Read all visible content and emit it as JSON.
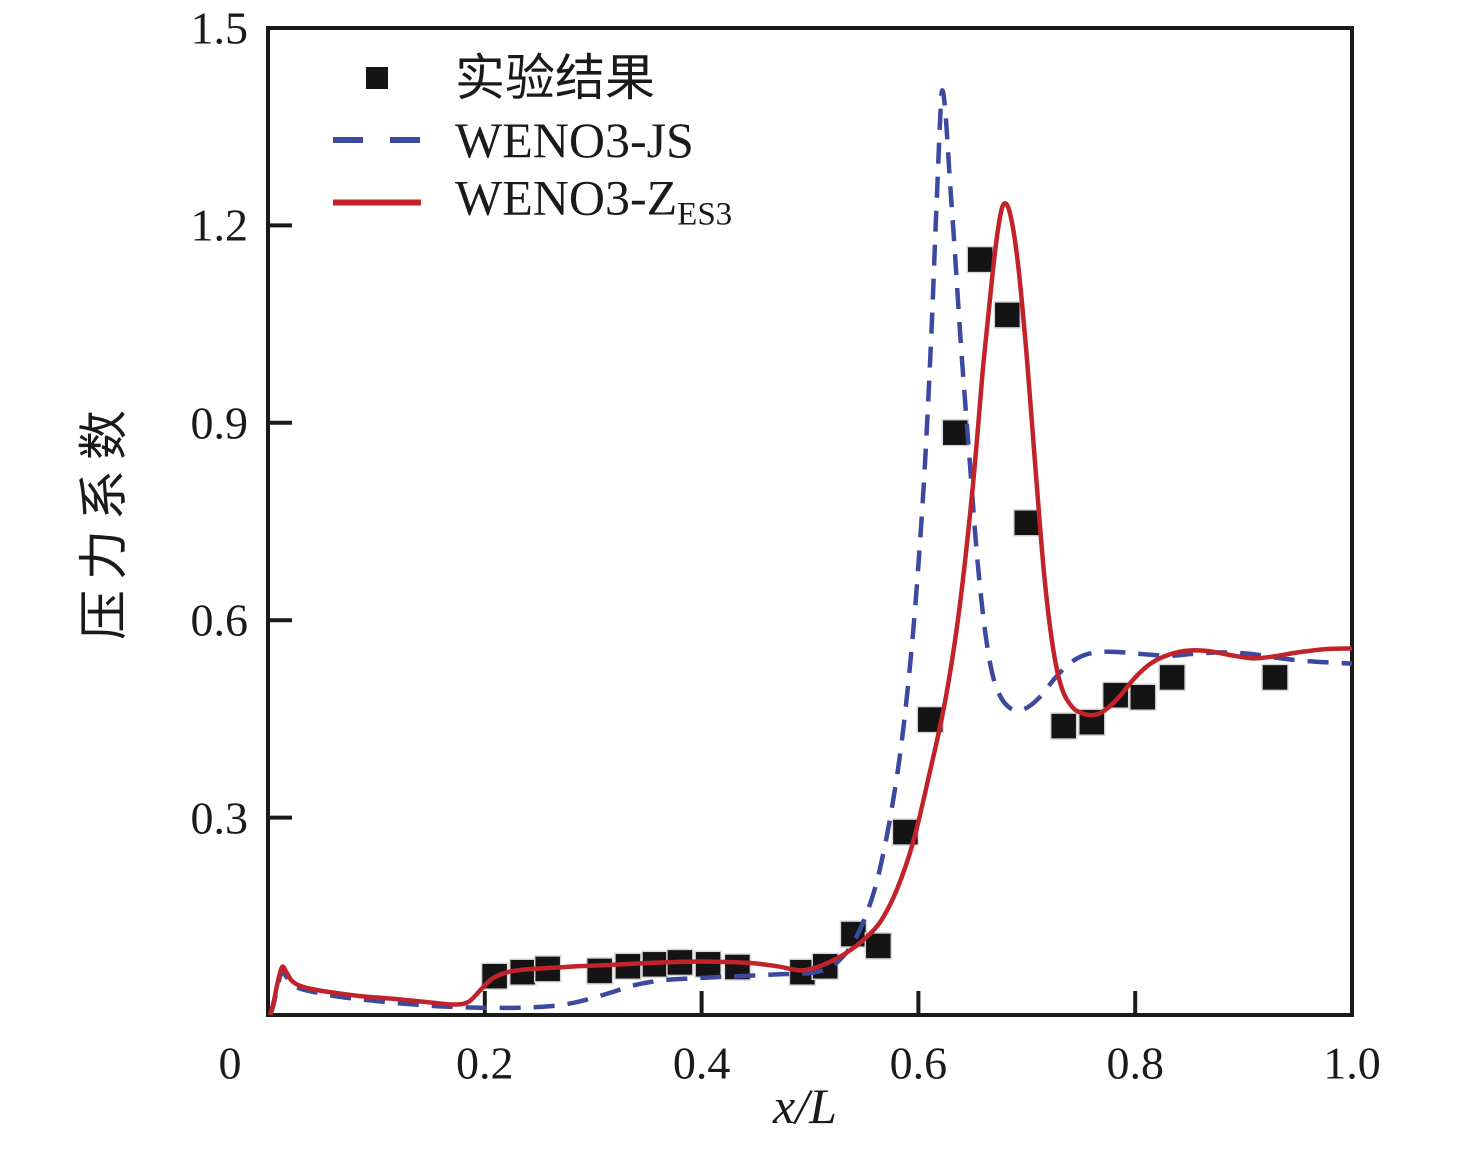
{
  "figure": {
    "background": "#ffffff",
    "axis_color": "#1a1a1a"
  },
  "legend": {
    "items": [
      {
        "label": "实验结果",
        "label_sub": "",
        "marker": "square",
        "color": "#141414"
      },
      {
        "label": "WENO3-JS",
        "label_sub": "",
        "marker": "dashed-line",
        "color": "#3b4a9f"
      },
      {
        "label": "WENO3-Z",
        "label_sub": "ES3",
        "marker": "solid-line",
        "color": "#c2232b"
      }
    ]
  },
  "chart_data": {
    "type": "line",
    "title": "",
    "xlabel": "x/L",
    "ylabel": "压力系数",
    "xlim": [
      0,
      1.0
    ],
    "ylim": [
      0,
      1.5
    ],
    "grid": false,
    "legend_position": "upper-left-inside",
    "x_ticks": [
      {
        "v": 0.0,
        "label": "0",
        "mark": false,
        "dx": -38
      },
      {
        "v": 0.2,
        "label": "0.2",
        "mark": true,
        "dx": 0
      },
      {
        "v": 0.4,
        "label": "0.4",
        "mark": true,
        "dx": 0
      },
      {
        "v": 0.6,
        "label": "0.6",
        "mark": true,
        "dx": 0
      },
      {
        "v": 0.8,
        "label": "0.8",
        "mark": true,
        "dx": 0
      },
      {
        "v": 1.0,
        "label": "1.0",
        "mark": false,
        "dx": 0
      }
    ],
    "y_ticks": [
      {
        "v": 0.3,
        "label": "0.3",
        "mark": true
      },
      {
        "v": 0.6,
        "label": "0.6",
        "mark": true
      },
      {
        "v": 0.9,
        "label": "0.9",
        "mark": true
      },
      {
        "v": 1.2,
        "label": "1.2",
        "mark": true
      },
      {
        "v": 1.5,
        "label": "1.5",
        "mark": false
      }
    ],
    "series": [
      {
        "name": "实验结果",
        "type": "scatter",
        "marker": "square",
        "marker_size": 26,
        "color": "#141414",
        "points": [
          [
            0.209,
            0.059
          ],
          [
            0.235,
            0.065
          ],
          [
            0.258,
            0.07
          ],
          [
            0.306,
            0.067
          ],
          [
            0.332,
            0.074
          ],
          [
            0.357,
            0.077
          ],
          [
            0.38,
            0.08
          ],
          [
            0.406,
            0.077
          ],
          [
            0.433,
            0.073
          ],
          [
            0.493,
            0.065
          ],
          [
            0.514,
            0.074
          ],
          [
            0.54,
            0.123
          ],
          [
            0.563,
            0.105
          ],
          [
            0.588,
            0.278
          ],
          [
            0.611,
            0.449
          ],
          [
            0.634,
            0.885
          ],
          [
            0.657,
            1.148
          ],
          [
            0.682,
            1.064
          ],
          [
            0.7,
            0.748
          ],
          [
            0.734,
            0.439
          ],
          [
            0.76,
            0.445
          ],
          [
            0.782,
            0.486
          ],
          [
            0.807,
            0.483
          ],
          [
            0.834,
            0.513
          ],
          [
            0.929,
            0.513
          ]
        ]
      },
      {
        "name": "WENO3-JS",
        "type": "line",
        "style": "dashed",
        "color": "#3b4a9f",
        "stroke_width": 4.5,
        "peak": {
          "x": 0.622,
          "y": 1.405
        },
        "points": [
          [
            0.002,
            0.0
          ],
          [
            0.005,
            0.015
          ],
          [
            0.009,
            0.045
          ],
          [
            0.013,
            0.066
          ],
          [
            0.017,
            0.058
          ],
          [
            0.022,
            0.047
          ],
          [
            0.03,
            0.04
          ],
          [
            0.045,
            0.034
          ],
          [
            0.065,
            0.028
          ],
          [
            0.09,
            0.023
          ],
          [
            0.12,
            0.018
          ],
          [
            0.15,
            0.014
          ],
          [
            0.175,
            0.012
          ],
          [
            0.2,
            0.011
          ],
          [
            0.23,
            0.011
          ],
          [
            0.258,
            0.013
          ],
          [
            0.28,
            0.018
          ],
          [
            0.3,
            0.026
          ],
          [
            0.318,
            0.035
          ],
          [
            0.335,
            0.044
          ],
          [
            0.352,
            0.05
          ],
          [
            0.372,
            0.054
          ],
          [
            0.395,
            0.056
          ],
          [
            0.42,
            0.058
          ],
          [
            0.448,
            0.06
          ],
          [
            0.472,
            0.062
          ],
          [
            0.495,
            0.063
          ],
          [
            0.512,
            0.068
          ],
          [
            0.525,
            0.08
          ],
          [
            0.538,
            0.105
          ],
          [
            0.55,
            0.145
          ],
          [
            0.562,
            0.205
          ],
          [
            0.574,
            0.3
          ],
          [
            0.585,
            0.42
          ],
          [
            0.595,
            0.58
          ],
          [
            0.604,
            0.78
          ],
          [
            0.611,
            1.0
          ],
          [
            0.616,
            1.2
          ],
          [
            0.62,
            1.36
          ],
          [
            0.622,
            1.405
          ],
          [
            0.625,
            1.37
          ],
          [
            0.629,
            1.27
          ],
          [
            0.634,
            1.15
          ],
          [
            0.64,
            1.0
          ],
          [
            0.647,
            0.85
          ],
          [
            0.654,
            0.7
          ],
          [
            0.661,
            0.59
          ],
          [
            0.668,
            0.52
          ],
          [
            0.676,
            0.483
          ],
          [
            0.685,
            0.466
          ],
          [
            0.694,
            0.463
          ],
          [
            0.703,
            0.47
          ],
          [
            0.713,
            0.485
          ],
          [
            0.726,
            0.512
          ],
          [
            0.74,
            0.535
          ],
          [
            0.755,
            0.548
          ],
          [
            0.772,
            0.552
          ],
          [
            0.79,
            0.551
          ],
          [
            0.81,
            0.548
          ],
          [
            0.832,
            0.546
          ],
          [
            0.855,
            0.549
          ],
          [
            0.88,
            0.551
          ],
          [
            0.905,
            0.549
          ],
          [
            0.93,
            0.543
          ],
          [
            0.958,
            0.538
          ],
          [
            1.0,
            0.534
          ]
        ]
      },
      {
        "name": "WENO3-ZES3",
        "type": "line",
        "style": "solid",
        "color": "#c2232b",
        "stroke_width": 4.5,
        "peak": {
          "x": 0.679,
          "y": 1.233
        },
        "points": [
          [
            0.002,
            0.0
          ],
          [
            0.005,
            0.018
          ],
          [
            0.009,
            0.05
          ],
          [
            0.013,
            0.073
          ],
          [
            0.017,
            0.065
          ],
          [
            0.022,
            0.052
          ],
          [
            0.03,
            0.044
          ],
          [
            0.045,
            0.038
          ],
          [
            0.065,
            0.033
          ],
          [
            0.09,
            0.028
          ],
          [
            0.12,
            0.024
          ],
          [
            0.15,
            0.019
          ],
          [
            0.172,
            0.016
          ],
          [
            0.185,
            0.02
          ],
          [
            0.196,
            0.038
          ],
          [
            0.205,
            0.053
          ],
          [
            0.215,
            0.062
          ],
          [
            0.23,
            0.068
          ],
          [
            0.255,
            0.071
          ],
          [
            0.285,
            0.074
          ],
          [
            0.315,
            0.076
          ],
          [
            0.35,
            0.079
          ],
          [
            0.385,
            0.081
          ],
          [
            0.415,
            0.081
          ],
          [
            0.445,
            0.079
          ],
          [
            0.47,
            0.074
          ],
          [
            0.49,
            0.068
          ],
          [
            0.505,
            0.072
          ],
          [
            0.52,
            0.082
          ],
          [
            0.535,
            0.096
          ],
          [
            0.55,
            0.115
          ],
          [
            0.565,
            0.142
          ],
          [
            0.58,
            0.19
          ],
          [
            0.595,
            0.262
          ],
          [
            0.61,
            0.365
          ],
          [
            0.625,
            0.48
          ],
          [
            0.638,
            0.62
          ],
          [
            0.65,
            0.8
          ],
          [
            0.66,
            0.99
          ],
          [
            0.668,
            1.12
          ],
          [
            0.674,
            1.2
          ],
          [
            0.679,
            1.233
          ],
          [
            0.685,
            1.215
          ],
          [
            0.692,
            1.14
          ],
          [
            0.7,
            1.0
          ],
          [
            0.708,
            0.83
          ],
          [
            0.716,
            0.67
          ],
          [
            0.724,
            0.56
          ],
          [
            0.732,
            0.498
          ],
          [
            0.742,
            0.468
          ],
          [
            0.752,
            0.458
          ],
          [
            0.762,
            0.456
          ],
          [
            0.772,
            0.463
          ],
          [
            0.785,
            0.483
          ],
          [
            0.8,
            0.513
          ],
          [
            0.815,
            0.535
          ],
          [
            0.832,
            0.548
          ],
          [
            0.85,
            0.554
          ],
          [
            0.868,
            0.553
          ],
          [
            0.888,
            0.547
          ],
          [
            0.908,
            0.542
          ],
          [
            0.928,
            0.545
          ],
          [
            0.95,
            0.551
          ],
          [
            0.975,
            0.556
          ],
          [
            1.0,
            0.557
          ]
        ]
      }
    ]
  }
}
